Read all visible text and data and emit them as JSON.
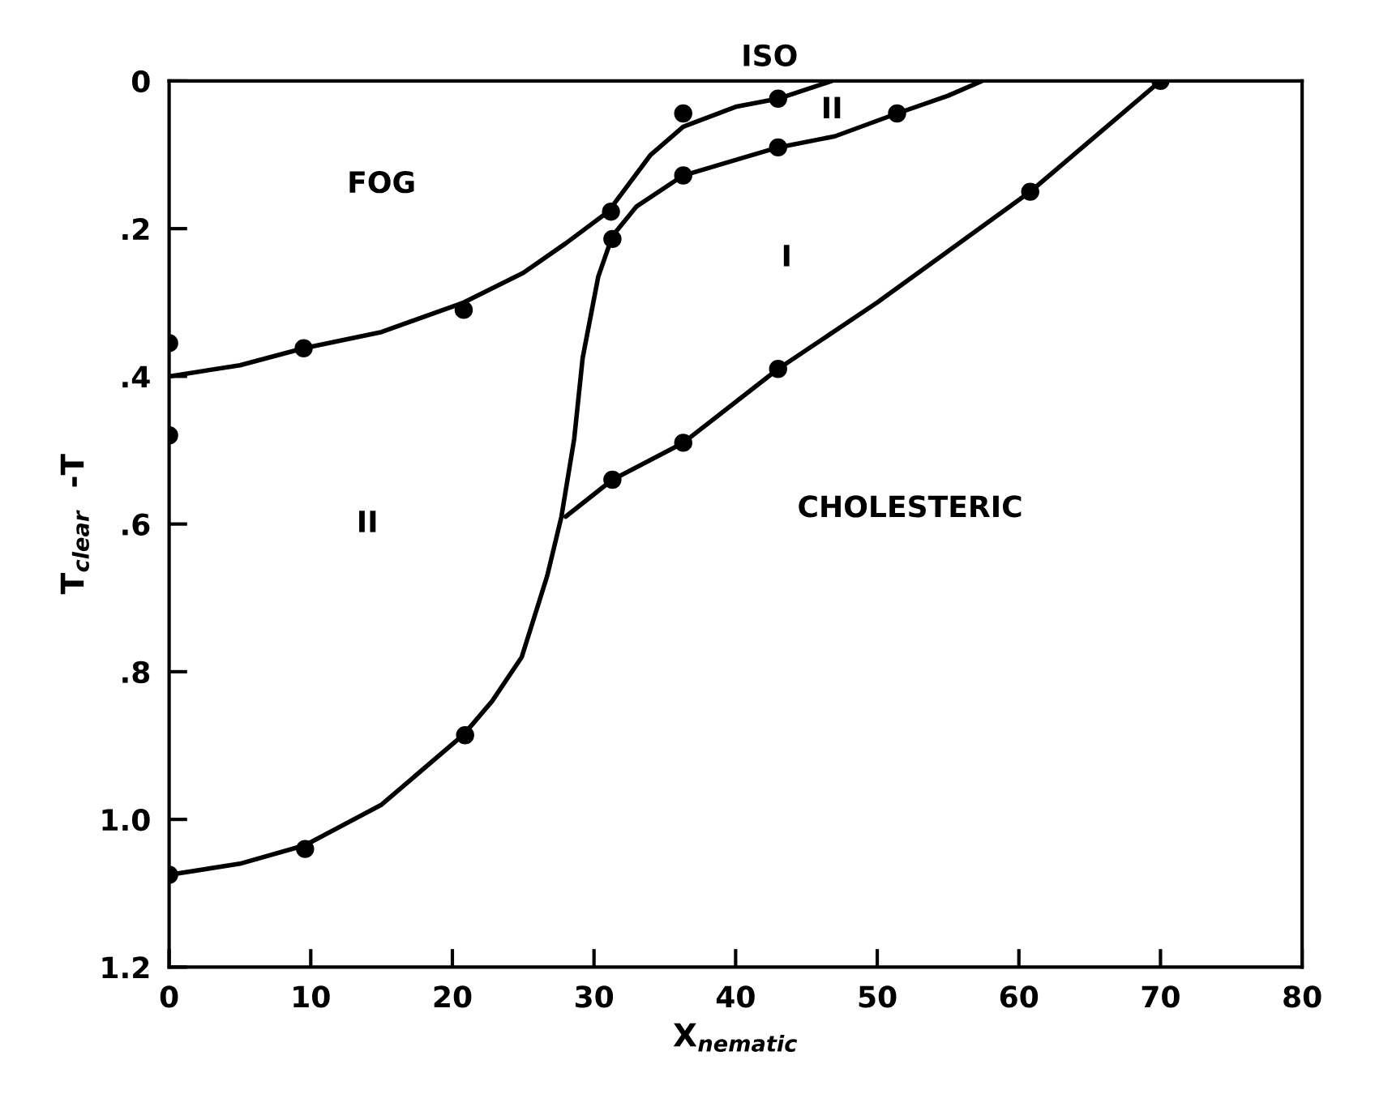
{
  "chart_data": {
    "type": "line",
    "xlabel": "X$_{nematic}$",
    "ylabel": "T$_{clear}$  -T",
    "xlim": [
      0,
      80
    ],
    "xticks": [
      0,
      10,
      20,
      30,
      40,
      50,
      60,
      70,
      80
    ],
    "ylim": [
      1.2,
      0
    ],
    "yticks": [
      0,
      {
        "value": 0.2,
        "label": ".2"
      },
      {
        "value": 0.4,
        "label": ".4"
      },
      {
        "value": 0.6,
        "label": ".6"
      },
      {
        "value": 0.8,
        "label": ".8"
      },
      {
        "value": 1.0,
        "label": "1.0"
      },
      {
        "value": 1.2,
        "label": "1.2"
      }
    ],
    "grid": false,
    "legend": false,
    "marker": "none",
    "line_style": "solid",
    "series": [
      {
        "color": "#000000",
        "x": [
          0,
          5,
          9.5,
          15,
          20.8,
          25,
          28,
          31,
          34,
          36.3,
          40,
          43,
          46.8
        ],
        "values": [
          0.4,
          0.385,
          0.362,
          0.34,
          0.3,
          0.26,
          0.22,
          0.177,
          0.1,
          0.062,
          0.035,
          0.024,
          0
        ]
      },
      {
        "color": "#000000",
        "x": [
          0,
          5,
          9.6,
          15,
          20.8,
          22.8,
          24.9,
          26.7,
          27.7,
          28.6,
          29.2,
          30.3,
          31.3,
          33,
          36.3,
          40,
          43,
          47,
          51.4,
          55,
          57.4
        ],
        "values": [
          1.075,
          1.06,
          1.035,
          0.98,
          0.885,
          0.84,
          0.78,
          0.67,
          0.59,
          0.485,
          0.375,
          0.265,
          0.21,
          0.17,
          0.128,
          0.107,
          0.09,
          0.075,
          0.044,
          0.02,
          0
        ]
      },
      {
        "color": "#000000",
        "x": [
          28,
          31.3,
          36.3,
          43,
          50,
          60.8,
          70
        ],
        "values": [
          0.59,
          0.54,
          0.49,
          0.39,
          0.3,
          0.15,
          0
        ]
      },
      {
        "type": "scatter",
        "color": "#000000",
        "marker": "circle",
        "x": [
          0,
          0,
          9.5,
          20.8,
          31.2,
          36.3,
          43,
          31.3,
          36.3,
          43,
          51.4,
          31.3,
          36.3,
          43,
          60.8,
          70,
          0,
          9.6,
          20.9
        ],
        "values": [
          0.355,
          0.48,
          0.362,
          0.31,
          0.177,
          0.044,
          0.024,
          0.214,
          0.128,
          0.09,
          0.044,
          0.54,
          0.49,
          0.39,
          0.15,
          0,
          1.075,
          1.04,
          0.886
        ]
      }
    ],
    "annotations": [
      "ISO",
      "FOG",
      "II",
      "I",
      "II",
      "CHOLESTERIC"
    ]
  }
}
